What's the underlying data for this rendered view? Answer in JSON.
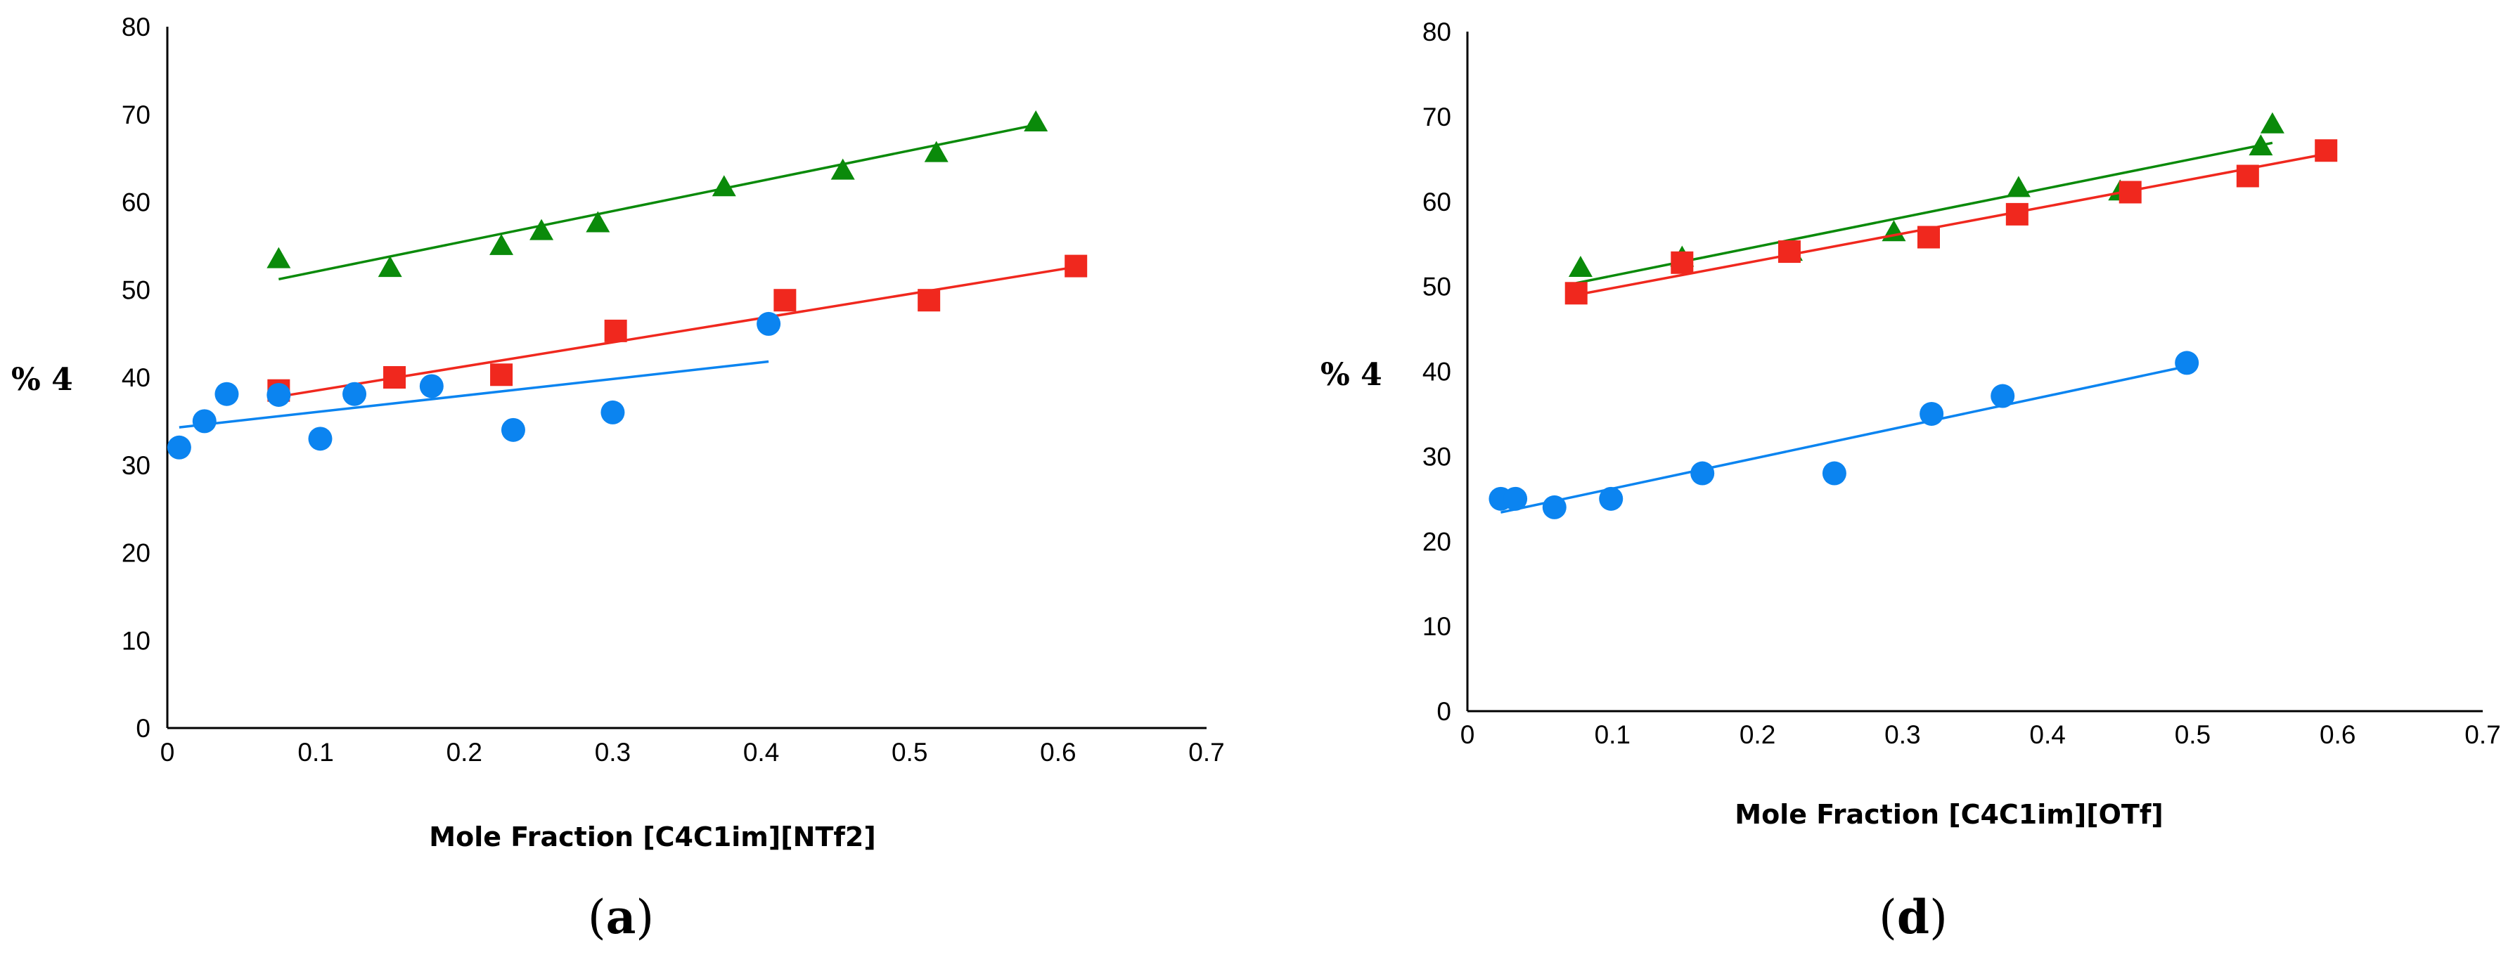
{
  "chart_data": [
    {
      "panel": "(a)",
      "panel_letter": "a",
      "type": "scatter",
      "xlabel": "Mole Fraction [C4C1im][NTf2]",
      "ylabel": "% 4",
      "xlim": [
        0,
        0.7
      ],
      "ylim": [
        0,
        80
      ],
      "xticks": [
        "0",
        "0.1",
        "0.2",
        "0.3",
        "0.4",
        "0.5",
        "0.6",
        "0.7"
      ],
      "yticks": [
        "0",
        "10",
        "20",
        "30",
        "40",
        "50",
        "60",
        "70",
        "80"
      ],
      "series": [
        {
          "name": "green",
          "marker": "triangle",
          "color": "#0a8a0a",
          "points": [
            [
              0.075,
              53.5
            ],
            [
              0.15,
              52.5
            ],
            [
              0.225,
              55.0
            ],
            [
              0.252,
              56.7
            ],
            [
              0.29,
              57.6
            ],
            [
              0.375,
              61.7
            ],
            [
              0.455,
              63.6
            ],
            [
              0.518,
              65.6
            ],
            [
              0.585,
              69.1
            ]
          ],
          "trendline": [
            [
              0.075,
              51.2
            ],
            [
              0.585,
              68.8
            ]
          ]
        },
        {
          "name": "red",
          "marker": "square",
          "color": "#f0281e",
          "points": [
            [
              0.075,
              38.5
            ],
            [
              0.153,
              40.0
            ],
            [
              0.225,
              40.3
            ],
            [
              0.302,
              45.3
            ],
            [
              0.416,
              48.8
            ],
            [
              0.513,
              48.8
            ],
            [
              0.612,
              52.7
            ]
          ],
          "trendline": [
            [
              0.075,
              37.8
            ],
            [
              0.612,
              52.6
            ]
          ]
        },
        {
          "name": "blue",
          "marker": "circle",
          "color": "#0b84f0",
          "points": [
            [
              0.008,
              32.0
            ],
            [
              0.025,
              35.0
            ],
            [
              0.04,
              38.1
            ],
            [
              0.075,
              38.0
            ],
            [
              0.103,
              33.0
            ],
            [
              0.126,
              38.1
            ],
            [
              0.178,
              39.0
            ],
            [
              0.233,
              34.0
            ],
            [
              0.3,
              36.0
            ],
            [
              0.405,
              46.1
            ]
          ],
          "trendline": [
            [
              0.008,
              34.3
            ],
            [
              0.405,
              41.8
            ]
          ]
        }
      ]
    },
    {
      "panel": "(d)",
      "panel_letter": "d",
      "type": "scatter",
      "xlabel": "Mole Fraction [C4C1im][OTf]",
      "ylabel": "% 4",
      "xlim": [
        0,
        0.7
      ],
      "ylim": [
        0,
        80
      ],
      "xticks": [
        "0",
        "0.1",
        "0.2",
        "0.3",
        "0.4",
        "0.5",
        "0.6",
        "0.7"
      ],
      "yticks": [
        "0",
        "10",
        "20",
        "30",
        "40",
        "50",
        "60",
        "70",
        "80"
      ],
      "series": [
        {
          "name": "green",
          "marker": "triangle",
          "color": "#0a8a0a",
          "points": [
            [
              0.078,
              52.2
            ],
            [
              0.148,
              53.4
            ],
            [
              0.223,
              54.1
            ],
            [
              0.294,
              56.4
            ],
            [
              0.38,
              61.6
            ],
            [
              0.45,
              61.2
            ],
            [
              0.547,
              66.5
            ],
            [
              0.555,
              69.1
            ]
          ],
          "trendline": [
            [
              0.075,
              50.4
            ],
            [
              0.555,
              66.9
            ]
          ]
        },
        {
          "name": "red",
          "marker": "square",
          "color": "#f0281e",
          "points": [
            [
              0.075,
              49.2
            ],
            [
              0.148,
              52.8
            ],
            [
              0.222,
              54.1
            ],
            [
              0.318,
              55.8
            ],
            [
              0.379,
              58.5
            ],
            [
              0.457,
              61.1
            ],
            [
              0.538,
              63.0
            ],
            [
              0.592,
              66.0
            ]
          ],
          "trendline": [
            [
              0.075,
              49.0
            ],
            [
              0.592,
              65.6
            ]
          ]
        },
        {
          "name": "blue",
          "marker": "circle",
          "color": "#0b84f0",
          "points": [
            [
              0.023,
              25.0
            ],
            [
              0.033,
              25.0
            ],
            [
              0.06,
              24.0
            ],
            [
              0.099,
              25.0
            ],
            [
              0.162,
              28.0
            ],
            [
              0.253,
              28.0
            ],
            [
              0.32,
              35.0
            ],
            [
              0.369,
              37.1
            ],
            [
              0.496,
              41.0
            ]
          ],
          "trendline": [
            [
              0.023,
              23.4
            ],
            [
              0.496,
              40.6
            ]
          ]
        }
      ]
    }
  ]
}
